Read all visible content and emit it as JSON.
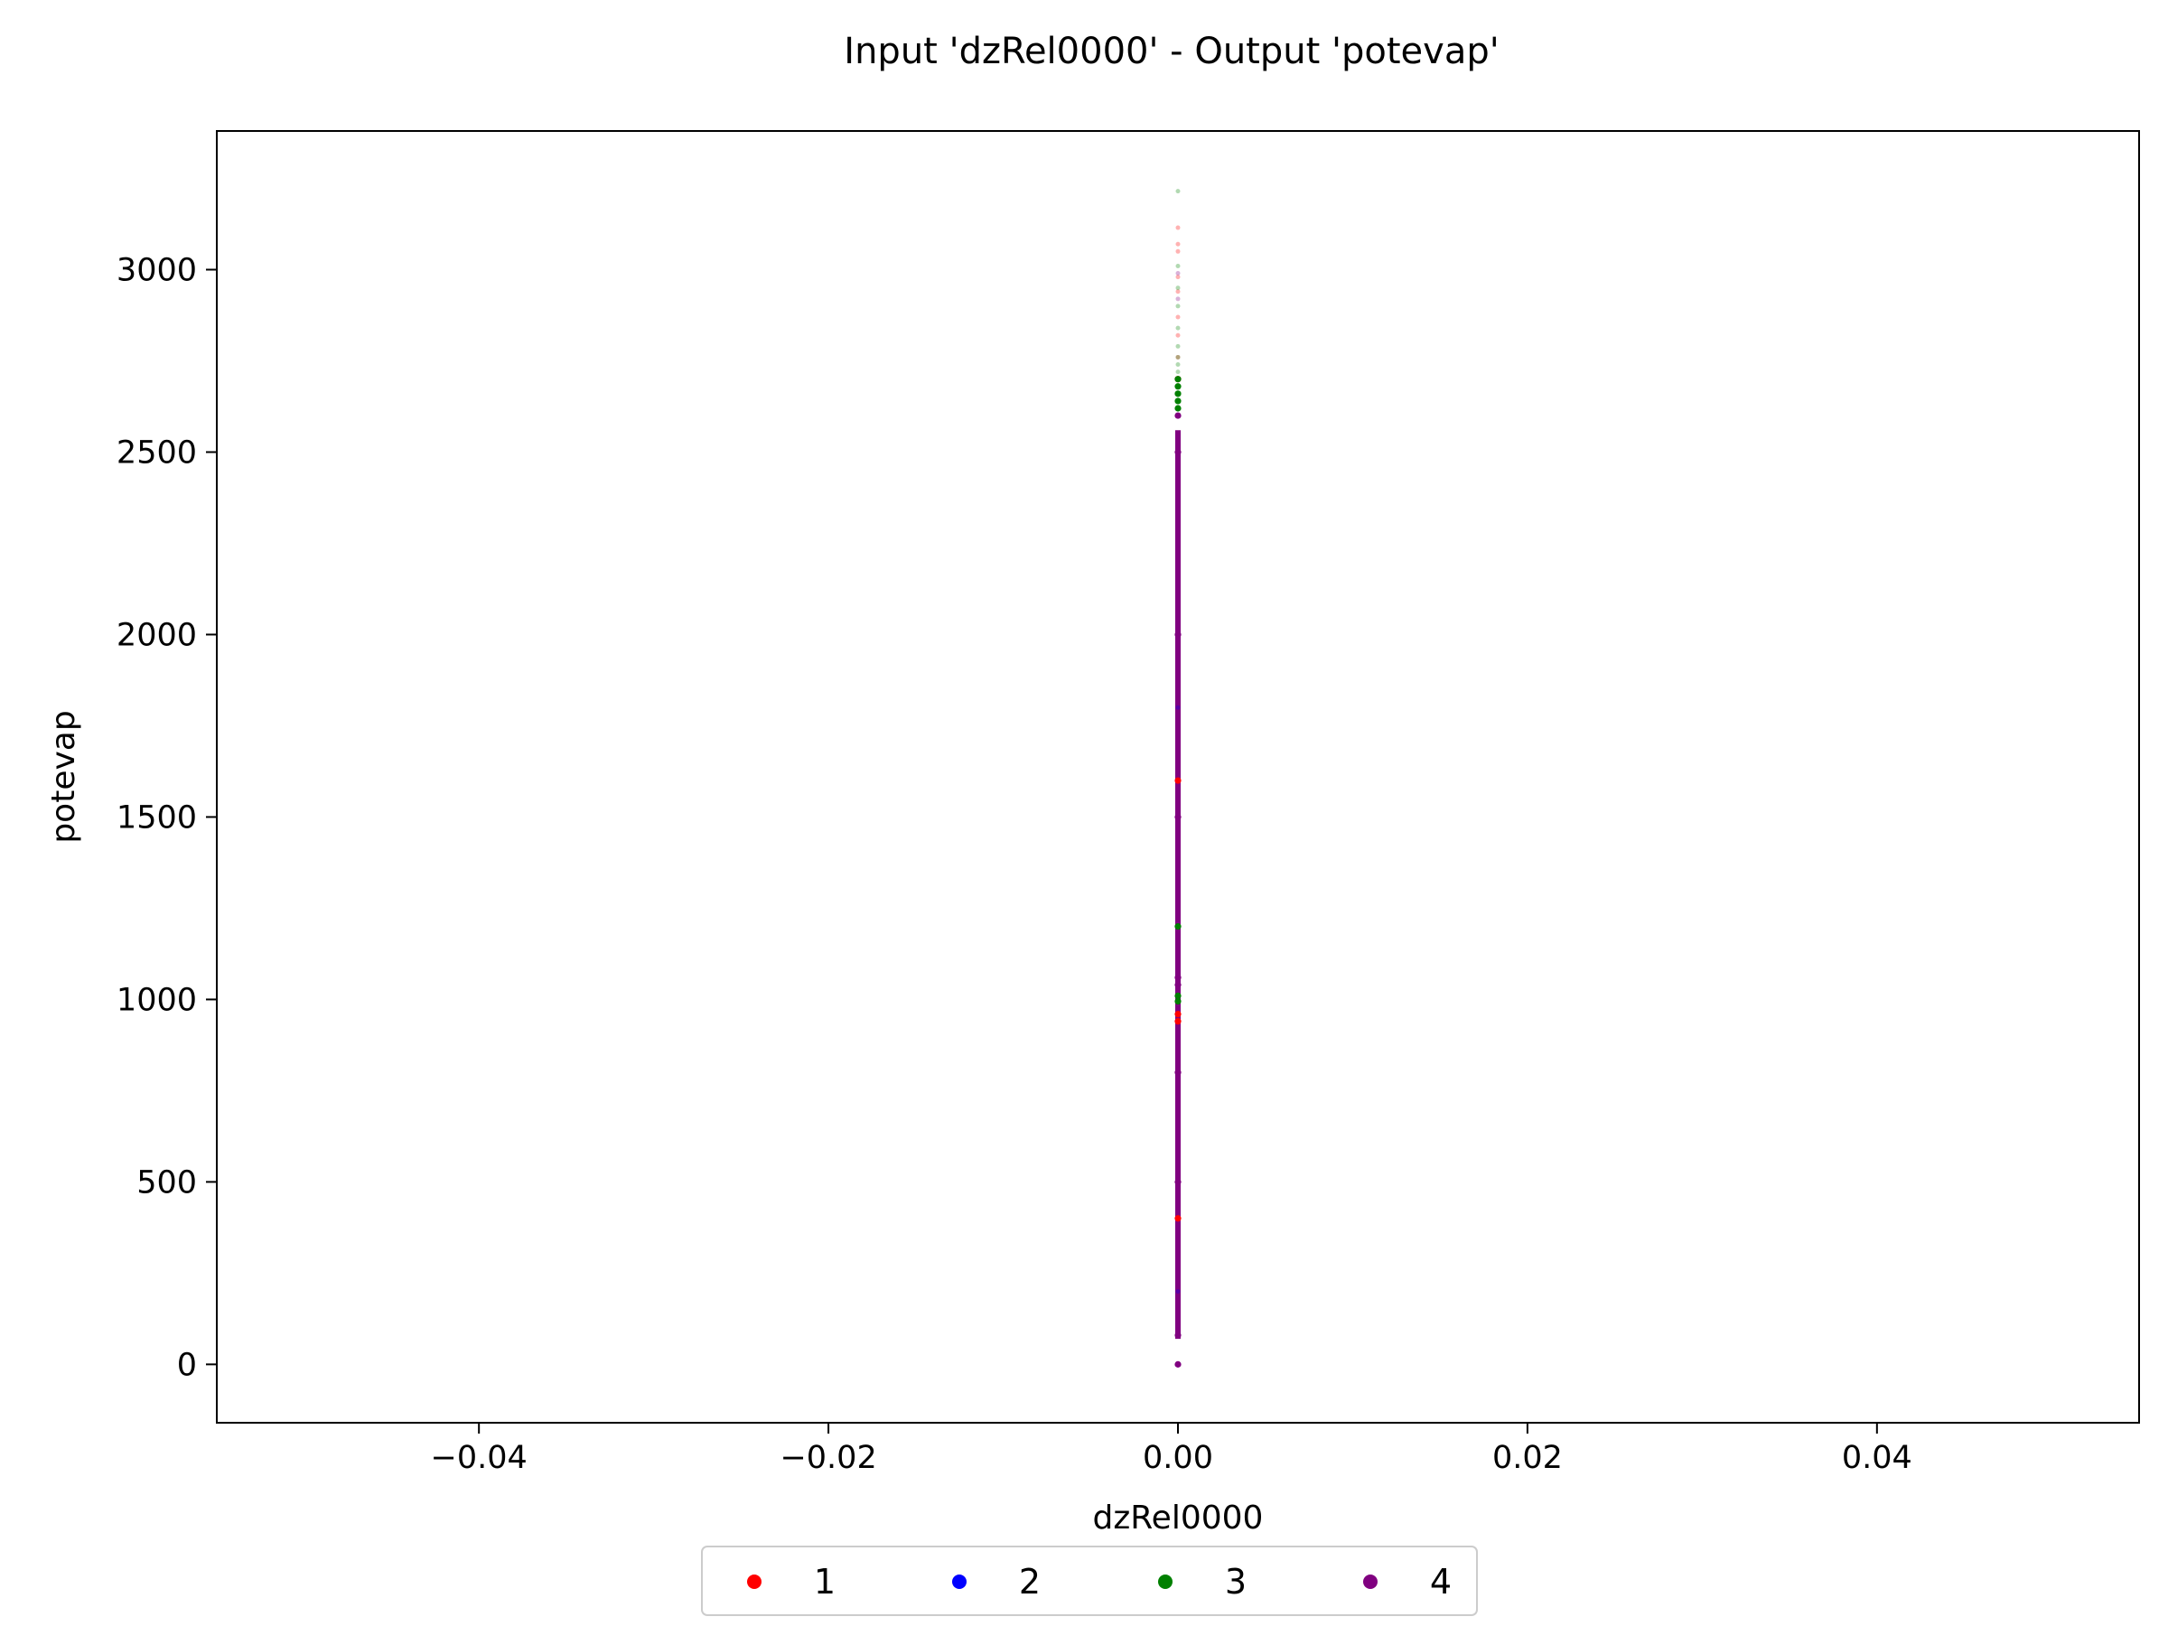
{
  "chart_data": {
    "type": "scatter",
    "title": "Input 'dzRel0000' - Output 'potevap'",
    "xlabel": "dzRel0000",
    "ylabel": "potevap",
    "xlim": [
      -0.055,
      0.055
    ],
    "ylim": [
      -160,
      3380
    ],
    "xticks": [
      -0.04,
      -0.02,
      0.0,
      0.02,
      0.04
    ],
    "xtick_labels": [
      "−0.04",
      "−0.02",
      "0.00",
      "0.02",
      "0.04"
    ],
    "yticks": [
      0,
      500,
      1000,
      1500,
      2000,
      2500,
      3000
    ],
    "ytick_labels": [
      "0",
      "500",
      "1000",
      "1500",
      "2000",
      "2500",
      "3000"
    ],
    "grid": false,
    "legend": {
      "placement": "bottom-center-outside",
      "ncol": 4
    },
    "series": [
      {
        "name": "1",
        "color": "#ff0000",
        "points": [
          [
            0,
            3115
          ],
          [
            0,
            3070
          ],
          [
            0,
            3050
          ],
          [
            0,
            2980
          ],
          [
            0,
            2940
          ],
          [
            0,
            2870
          ],
          [
            0,
            2820
          ],
          [
            0,
            2760
          ],
          [
            0,
            2700
          ],
          [
            0,
            1600
          ],
          [
            0,
            960
          ],
          [
            0,
            940
          ],
          [
            0,
            400
          ]
        ]
      },
      {
        "name": "2",
        "color": "#0000ff",
        "points": [
          [
            0,
            2600
          ],
          [
            0,
            1800
          ],
          [
            0,
            1000
          ],
          [
            0,
            200
          ]
        ]
      },
      {
        "name": "3",
        "color": "#008000",
        "points": [
          [
            0,
            3215
          ],
          [
            0,
            3010
          ],
          [
            0,
            2950
          ],
          [
            0,
            2900
          ],
          [
            0,
            2840
          ],
          [
            0,
            2790
          ],
          [
            0,
            2760
          ],
          [
            0,
            2740
          ],
          [
            0,
            2720
          ],
          [
            0,
            2700
          ],
          [
            0,
            2680
          ],
          [
            0,
            2660
          ],
          [
            0,
            2640
          ],
          [
            0,
            2620
          ],
          [
            0,
            1010
          ],
          [
            0,
            995
          ],
          [
            0,
            1200
          ]
        ]
      },
      {
        "name": "4",
        "color": "#800080",
        "points": [
          [
            0,
            2990
          ],
          [
            0,
            2920
          ],
          [
            0,
            2600
          ],
          [
            0,
            2500
          ],
          [
            0,
            2000
          ],
          [
            0,
            1500
          ],
          [
            0,
            1060
          ],
          [
            0,
            1040
          ],
          [
            0,
            800
          ],
          [
            0,
            500
          ],
          [
            0,
            80
          ],
          [
            0,
            0
          ]
        ]
      }
    ],
    "column": {
      "series": "4",
      "from": 70,
      "to": 2560,
      "gap": [
        1070,
        1100
      ]
    }
  }
}
